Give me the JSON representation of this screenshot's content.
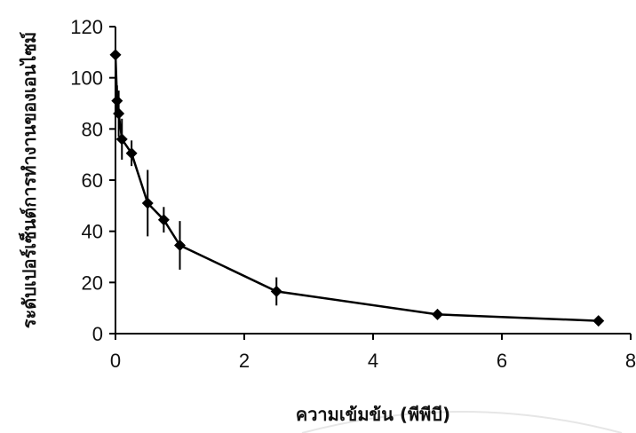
{
  "chart_data": {
    "type": "line",
    "title": "",
    "xlabel": "ความเข้มข้น (พีพีบี)",
    "ylabel": "ระดับเปอร์เซ็นต์การทำงานของเอนไซม์",
    "xlim": [
      0,
      8
    ],
    "ylim": [
      0,
      120
    ],
    "xticks": [
      "0",
      "2",
      "4",
      "6",
      "8"
    ],
    "yticks": [
      "0",
      "20",
      "40",
      "60",
      "80",
      "100",
      "120"
    ],
    "grid": false,
    "legend": "none",
    "marker": "diamond",
    "color": "#000000",
    "series": [
      {
        "x": [
          0,
          0.025,
          0.05,
          0.1,
          0.25,
          0.5,
          0.75,
          1.0,
          2.5,
          5.0,
          7.5
        ],
        "y": [
          109,
          91,
          86,
          76,
          70.5,
          51,
          44.5,
          34.5,
          16.5,
          7.5,
          5
        ],
        "error": [
          10,
          6,
          9,
          8,
          5,
          13,
          5,
          9.5,
          5.5,
          1.5,
          1
        ]
      }
    ]
  }
}
